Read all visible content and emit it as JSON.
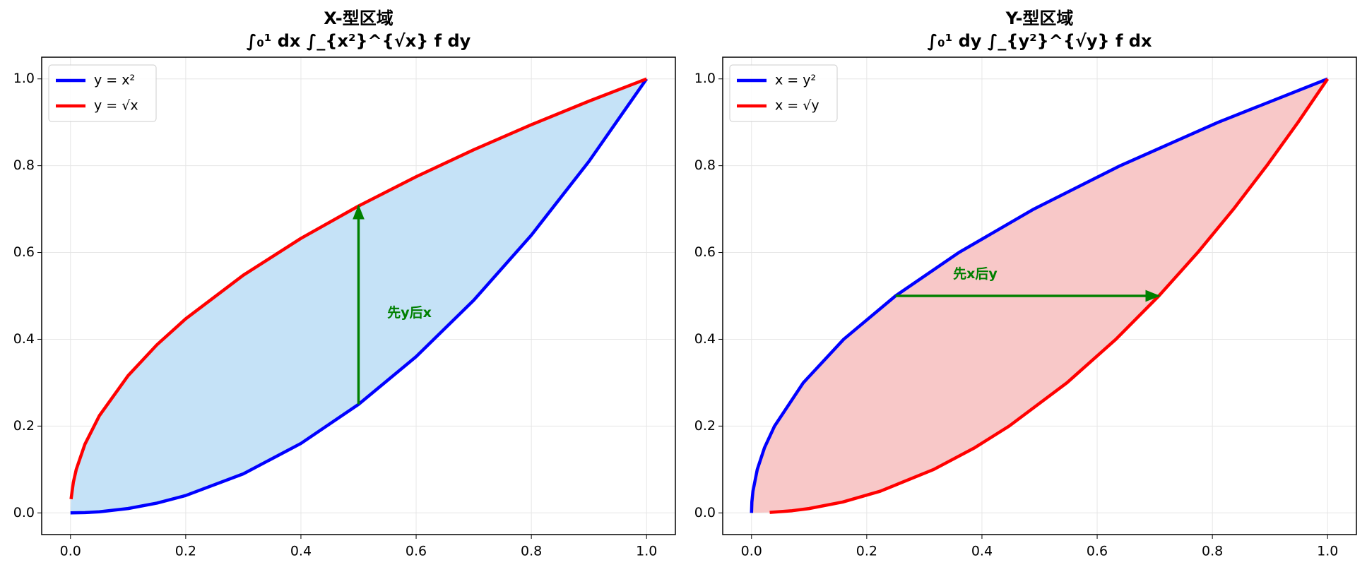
{
  "chart_data": [
    {
      "type": "line",
      "title": "X-型区域",
      "subtitle": "∫₀¹ dx ∫_{x²}^{√x} f dy",
      "xlim": [
        -0.05,
        1.05
      ],
      "ylim": [
        -0.05,
        1.05
      ],
      "xticks": [
        {
          "value": 0,
          "label": "0.0"
        },
        {
          "value": 0.2,
          "label": "0.2"
        },
        {
          "value": 0.4,
          "label": "0.4"
        },
        {
          "value": 0.6,
          "label": "0.6"
        },
        {
          "value": 0.8,
          "label": "0.8"
        },
        {
          "value": 1,
          "label": "1.0"
        }
      ],
      "yticks": [
        {
          "value": 0,
          "label": "0.0"
        },
        {
          "value": 0.2,
          "label": "0.2"
        },
        {
          "value": 0.4,
          "label": "0.4"
        },
        {
          "value": 0.6,
          "label": "0.6"
        },
        {
          "value": 0.8,
          "label": "0.8"
        },
        {
          "value": 1,
          "label": "1.0"
        }
      ],
      "grid": true,
      "legend": "upper left",
      "fill": "#c5e2f7",
      "series": [
        {
          "name": "y = x²",
          "color": "#0000ff",
          "x": [
            0,
            0.025,
            0.05,
            0.1,
            0.15,
            0.2,
            0.3,
            0.4,
            0.5,
            0.6,
            0.7,
            0.8,
            0.9,
            1
          ],
          "values": [
            0,
            0.000625,
            0.0025,
            0.01,
            0.0225,
            0.04,
            0.09,
            0.16,
            0.25,
            0.36,
            0.49,
            0.64,
            0.81,
            1
          ]
        },
        {
          "name": "y = √x",
          "color": "#ff0000",
          "x": [
            0.001,
            0.005,
            0.01,
            0.025,
            0.05,
            0.1,
            0.15,
            0.2,
            0.3,
            0.4,
            0.5,
            0.6,
            0.7,
            0.8,
            0.9,
            1
          ],
          "values": [
            0.0316,
            0.0707,
            0.1,
            0.1581,
            0.2236,
            0.3162,
            0.3873,
            0.4472,
            0.5477,
            0.6325,
            0.7071,
            0.7746,
            0.8367,
            0.8944,
            0.9487,
            1
          ]
        }
      ],
      "arrow": {
        "color": "#008000",
        "x": [
          0.5,
          0.5
        ],
        "y": [
          0.25,
          0.7071
        ]
      },
      "annotation": {
        "text": "先y后x",
        "color": "#008000",
        "x": 0.55,
        "y": 0.46
      }
    },
    {
      "type": "line",
      "title": "Y-型区域",
      "subtitle": "∫₀¹ dy ∫_{y²}^{√y} f dx",
      "xlim": [
        -0.05,
        1.05
      ],
      "ylim": [
        -0.05,
        1.05
      ],
      "xticks": [
        {
          "value": 0,
          "label": "0.0"
        },
        {
          "value": 0.2,
          "label": "0.2"
        },
        {
          "value": 0.4,
          "label": "0.4"
        },
        {
          "value": 0.6,
          "label": "0.6"
        },
        {
          "value": 0.8,
          "label": "0.8"
        },
        {
          "value": 1,
          "label": "1.0"
        }
      ],
      "yticks": [
        {
          "value": 0,
          "label": "0.0"
        },
        {
          "value": 0.2,
          "label": "0.2"
        },
        {
          "value": 0.4,
          "label": "0.4"
        },
        {
          "value": 0.6,
          "label": "0.6"
        },
        {
          "value": 0.8,
          "label": "0.8"
        },
        {
          "value": 1,
          "label": "1.0"
        }
      ],
      "grid": true,
      "legend": "upper left",
      "fill": "#f8c8c8",
      "series": [
        {
          "name": "x = y²",
          "color": "#0000ff",
          "x": [
            0,
            0.000625,
            0.0025,
            0.01,
            0.0225,
            0.04,
            0.09,
            0.16,
            0.25,
            0.36,
            0.49,
            0.64,
            0.81,
            1
          ],
          "values": [
            0,
            0.025,
            0.05,
            0.1,
            0.15,
            0.2,
            0.3,
            0.4,
            0.5,
            0.6,
            0.7,
            0.8,
            0.9,
            1
          ]
        },
        {
          "name": "x = √y",
          "color": "#ff0000",
          "x": [
            0.0316,
            0.0707,
            0.1,
            0.1581,
            0.2236,
            0.3162,
            0.3873,
            0.4472,
            0.5477,
            0.6325,
            0.7071,
            0.7746,
            0.8367,
            0.8944,
            0.9487,
            1
          ],
          "values": [
            0.001,
            0.005,
            0.01,
            0.025,
            0.05,
            0.1,
            0.15,
            0.2,
            0.3,
            0.4,
            0.5,
            0.6,
            0.7,
            0.8,
            0.9,
            1
          ]
        }
      ],
      "arrow": {
        "color": "#008000",
        "x": [
          0.25,
          0.7071
        ],
        "y": [
          0.5,
          0.5
        ]
      },
      "annotation": {
        "text": "先x后y",
        "color": "#008000",
        "x": 0.35,
        "y": 0.55
      }
    }
  ]
}
